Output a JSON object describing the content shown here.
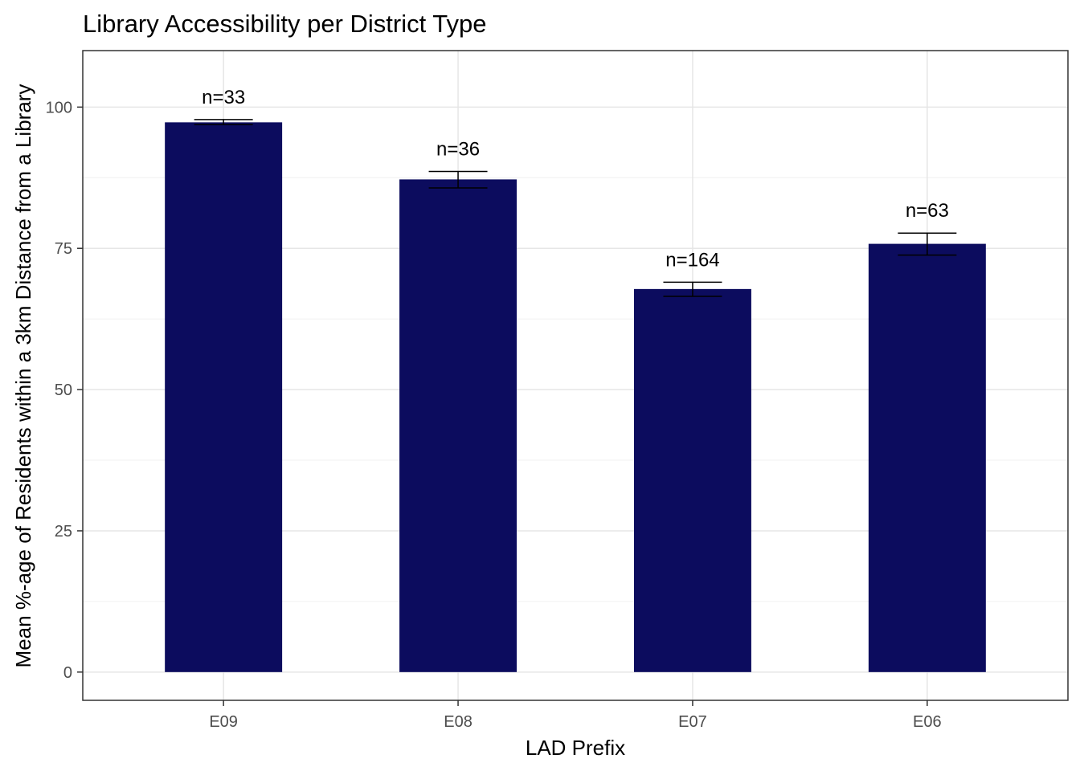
{
  "chart_data": {
    "type": "bar",
    "title": "Library Accessibility per District Type",
    "xlabel": "LAD Prefix",
    "ylabel": "Mean %-age of Residents within a 3km Distance from a Library",
    "categories": [
      "E09",
      "E08",
      "E07",
      "E06"
    ],
    "values": [
      97.3,
      87.2,
      67.8,
      75.8
    ],
    "error_low": [
      96.9,
      85.7,
      66.5,
      73.8
    ],
    "error_high": [
      97.8,
      88.6,
      69.0,
      77.7
    ],
    "data_labels": [
      "n=33",
      "n=36",
      "n=164",
      "n=63"
    ],
    "ylim": [
      -5,
      110
    ],
    "yticks": [
      0,
      25,
      50,
      75,
      100
    ],
    "ytick_labels": [
      "0",
      "25",
      "50",
      "75",
      "100"
    ],
    "bar_color": "#0c0c5e",
    "grid": true,
    "legend": "none"
  }
}
